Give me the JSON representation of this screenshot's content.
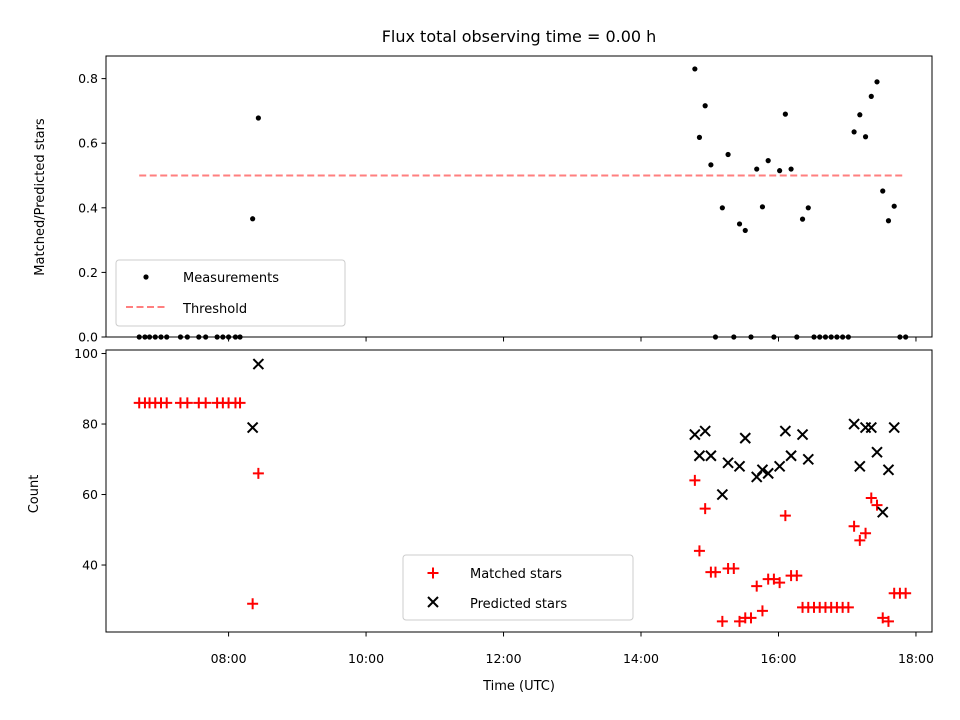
{
  "chart_data": [
    {
      "type": "scatter",
      "title": "Flux total observing time = 0.00 h",
      "xlabel": "",
      "ylabel": "Matched/Predicted stars",
      "xlim": [
        "06:13",
        "18:14"
      ],
      "ylim": [
        0,
        0.87
      ],
      "y_ticks": [
        0.0,
        0.2,
        0.4,
        0.6,
        0.8
      ],
      "y_tick_labels": [
        "0.0",
        "0.2",
        "0.4",
        "0.6",
        "0.8"
      ],
      "x_ticks": [
        "08:00",
        "10:00",
        "12:00",
        "14:00",
        "16:00",
        "18:00"
      ],
      "grid": false,
      "legend_position": "lower-left",
      "series": [
        {
          "name": "Measurements",
          "color": "#000000",
          "marker": "dot",
          "points": [
            [
              "06:42",
              0.0
            ],
            [
              "06:47",
              0.0
            ],
            [
              "06:51",
              0.0
            ],
            [
              "06:56",
              0.0
            ],
            [
              "07:01",
              0.0
            ],
            [
              "07:06",
              0.0
            ],
            [
              "07:18",
              0.0
            ],
            [
              "07:24",
              0.0
            ],
            [
              "07:34",
              0.0
            ],
            [
              "07:40",
              0.0
            ],
            [
              "07:50",
              0.0
            ],
            [
              "07:55",
              0.0
            ],
            [
              "08:00",
              0.0
            ],
            [
              "08:06",
              0.0
            ],
            [
              "08:10",
              0.0
            ],
            [
              "08:21",
              0.366
            ],
            [
              "08:26",
              0.678
            ],
            [
              "14:47",
              0.83
            ],
            [
              "14:51",
              0.618
            ],
            [
              "14:56",
              0.716
            ],
            [
              "15:01",
              0.533
            ],
            [
              "15:05",
              0.0
            ],
            [
              "15:11",
              0.4
            ],
            [
              "15:16",
              0.565
            ],
            [
              "15:21",
              0.0
            ],
            [
              "15:26",
              0.35
            ],
            [
              "15:31",
              0.33
            ],
            [
              "15:36",
              0.0
            ],
            [
              "15:41",
              0.52
            ],
            [
              "15:46",
              0.403
            ],
            [
              "15:51",
              0.546
            ],
            [
              "15:56",
              0.0
            ],
            [
              "16:01",
              0.515
            ],
            [
              "16:06",
              0.69
            ],
            [
              "16:11",
              0.52
            ],
            [
              "16:16",
              0.0
            ],
            [
              "16:21",
              0.365
            ],
            [
              "16:26",
              0.4
            ],
            [
              "16:31",
              0.0
            ],
            [
              "16:36",
              0.0
            ],
            [
              "16:41",
              0.0
            ],
            [
              "16:46",
              0.0
            ],
            [
              "16:51",
              0.0
            ],
            [
              "16:56",
              0.0
            ],
            [
              "17:01",
              0.0
            ],
            [
              "17:06",
              0.635
            ],
            [
              "17:11",
              0.688
            ],
            [
              "17:16",
              0.62
            ],
            [
              "17:21",
              0.745
            ],
            [
              "17:26",
              0.79
            ],
            [
              "17:31",
              0.452
            ],
            [
              "17:36",
              0.36
            ],
            [
              "17:41",
              0.405
            ],
            [
              "17:46",
              0.0
            ],
            [
              "17:51",
              0.0
            ]
          ]
        },
        {
          "name": "Threshold",
          "color": "#ff7f7f",
          "style": "dashed",
          "points": [
            [
              "06:42",
              0.5
            ],
            [
              "17:51",
              0.5
            ]
          ]
        }
      ]
    },
    {
      "type": "scatter",
      "title": "",
      "xlabel": "Time (UTC)",
      "ylabel": "Count",
      "xlim": [
        "06:13",
        "18:14"
      ],
      "ylim": [
        21,
        101
      ],
      "y_ticks": [
        40,
        60,
        80,
        100
      ],
      "y_tick_labels": [
        "40",
        "60",
        "80",
        "100"
      ],
      "x_ticks": [
        "08:00",
        "10:00",
        "12:00",
        "14:00",
        "16:00",
        "18:00"
      ],
      "x_tick_labels": [
        "08:00",
        "10:00",
        "12:00",
        "14:00",
        "16:00",
        "18:00"
      ],
      "grid": false,
      "legend_position": "lower-center",
      "series": [
        {
          "name": "Matched stars",
          "color": "#ff0000",
          "marker": "plus",
          "points": [
            [
              "06:42",
              86
            ],
            [
              "06:47",
              86
            ],
            [
              "06:51",
              86
            ],
            [
              "06:56",
              86
            ],
            [
              "07:01",
              86
            ],
            [
              "07:06",
              86
            ],
            [
              "07:18",
              86
            ],
            [
              "07:24",
              86
            ],
            [
              "07:34",
              86
            ],
            [
              "07:40",
              86
            ],
            [
              "07:50",
              86
            ],
            [
              "07:55",
              86
            ],
            [
              "08:00",
              86
            ],
            [
              "08:06",
              86
            ],
            [
              "08:10",
              86
            ],
            [
              "08:21",
              29
            ],
            [
              "08:26",
              66
            ],
            [
              "14:47",
              64
            ],
            [
              "14:51",
              44
            ],
            [
              "14:56",
              56
            ],
            [
              "15:01",
              38
            ],
            [
              "15:05",
              38
            ],
            [
              "15:11",
              24
            ],
            [
              "15:16",
              39
            ],
            [
              "15:21",
              39
            ],
            [
              "15:26",
              24
            ],
            [
              "15:31",
              25
            ],
            [
              "15:36",
              25
            ],
            [
              "15:41",
              34
            ],
            [
              "15:46",
              27
            ],
            [
              "15:51",
              36
            ],
            [
              "15:56",
              36
            ],
            [
              "16:01",
              35
            ],
            [
              "16:06",
              54
            ],
            [
              "16:11",
              37
            ],
            [
              "16:16",
              37
            ],
            [
              "16:21",
              28
            ],
            [
              "16:26",
              28
            ],
            [
              "16:31",
              28
            ],
            [
              "16:36",
              28
            ],
            [
              "16:41",
              28
            ],
            [
              "16:46",
              28
            ],
            [
              "16:51",
              28
            ],
            [
              "16:56",
              28
            ],
            [
              "17:01",
              28
            ],
            [
              "17:06",
              51
            ],
            [
              "17:11",
              47
            ],
            [
              "17:16",
              49
            ],
            [
              "17:21",
              59
            ],
            [
              "17:26",
              57
            ],
            [
              "17:31",
              25
            ],
            [
              "17:36",
              24
            ],
            [
              "17:41",
              32
            ],
            [
              "17:46",
              32
            ],
            [
              "17:51",
              32
            ]
          ]
        },
        {
          "name": "Predicted stars",
          "color": "#000000",
          "marker": "x",
          "points": [
            [
              "08:21",
              79
            ],
            [
              "08:26",
              97
            ],
            [
              "14:47",
              77
            ],
            [
              "14:51",
              71
            ],
            [
              "14:56",
              78
            ],
            [
              "15:01",
              71
            ],
            [
              "15:11",
              60
            ],
            [
              "15:16",
              69
            ],
            [
              "15:26",
              68
            ],
            [
              "15:31",
              76
            ],
            [
              "15:41",
              65
            ],
            [
              "15:46",
              67
            ],
            [
              "15:51",
              66
            ],
            [
              "16:01",
              68
            ],
            [
              "16:06",
              78
            ],
            [
              "16:11",
              71
            ],
            [
              "16:21",
              77
            ],
            [
              "16:26",
              70
            ],
            [
              "17:06",
              80
            ],
            [
              "17:11",
              68
            ],
            [
              "17:16",
              79
            ],
            [
              "17:21",
              79
            ],
            [
              "17:26",
              72
            ],
            [
              "17:31",
              55
            ],
            [
              "17:36",
              67
            ],
            [
              "17:41",
              79
            ]
          ]
        }
      ]
    }
  ]
}
